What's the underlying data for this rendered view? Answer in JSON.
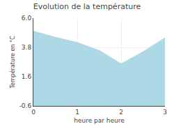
{
  "chart_data": {
    "type": "area",
    "title": "Evolution de la température",
    "x_label": "heure par heure",
    "y_label": "Température en °C",
    "x": [
      0,
      0.5,
      1.0,
      1.5,
      2.0,
      2.5,
      3.0
    ],
    "values": [
      5.0,
      4.55,
      4.15,
      3.55,
      2.55,
      3.45,
      4.5
    ],
    "color": "#add8e6",
    "xlim": [
      0,
      3
    ],
    "ylim": [
      -0.6,
      6.0
    ],
    "xticks": [
      0,
      1,
      2,
      3
    ],
    "yticks": [
      -0.6,
      1.6,
      3.8,
      {
        "value": 6.0,
        "label": "6.0"
      }
    ],
    "grid": true
  }
}
